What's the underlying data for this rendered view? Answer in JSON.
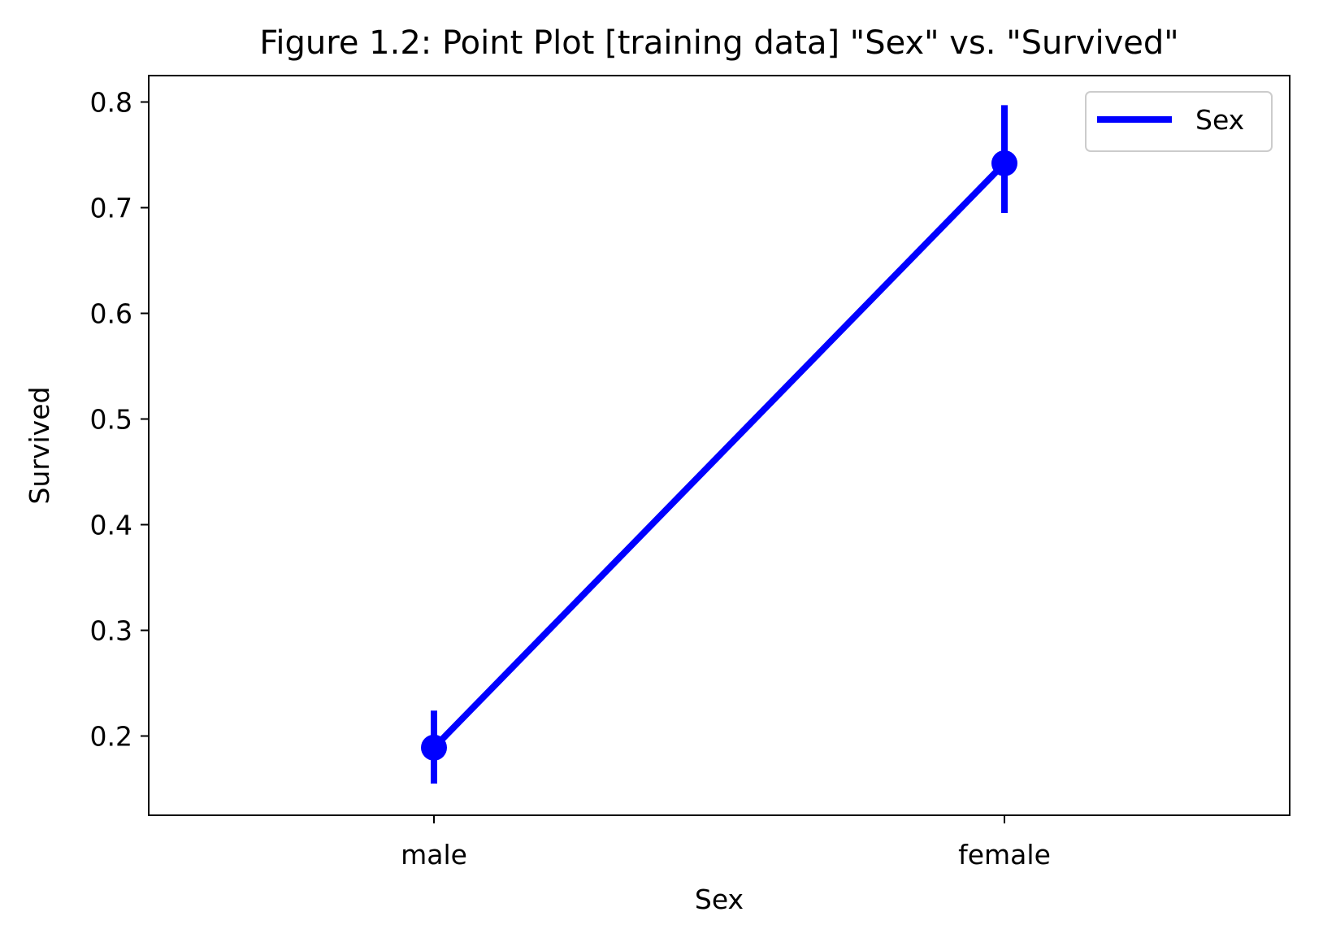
{
  "chart_data": {
    "type": "line",
    "title": "Figure 1.2:  Point Plot [training data] \"Sex\" vs. \"Survived\"",
    "xlabel": "Sex",
    "ylabel": "Survived",
    "categories": [
      "male",
      "female"
    ],
    "series": [
      {
        "name": "Sex",
        "color": "#0000ff",
        "values": [
          0.189,
          0.742
        ],
        "ci_low": [
          0.155,
          0.695
        ],
        "ci_high": [
          0.224,
          0.797
        ]
      }
    ],
    "ylim": [
      0.125,
      0.825
    ],
    "yticks": [
      0.2,
      0.3,
      0.4,
      0.5,
      0.6,
      0.7,
      0.8
    ],
    "ytick_labels": [
      "0.2",
      "0.3",
      "0.4",
      "0.5",
      "0.6",
      "0.7",
      "0.8"
    ],
    "grid": false,
    "legend_position": "upper-right"
  }
}
